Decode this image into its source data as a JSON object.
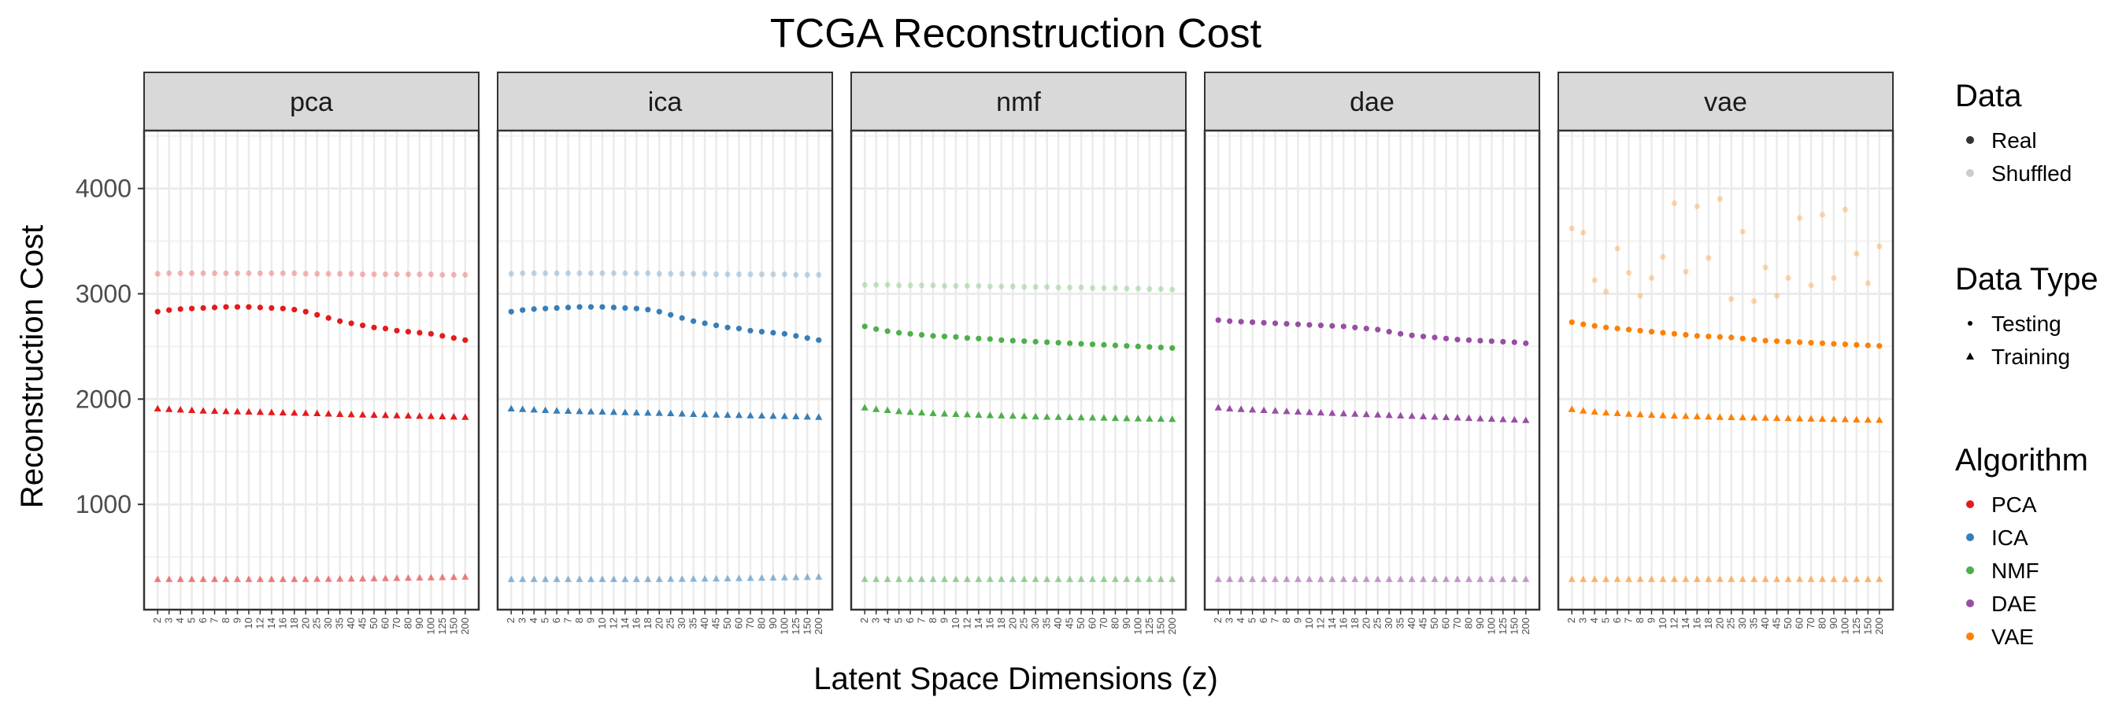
{
  "chart_data": {
    "type": "scatter",
    "title": "TCGA Reconstruction Cost",
    "xlabel": "Latent Space Dimensions (z)",
    "ylabel": "Reconstruction Cost",
    "yticks": [
      1000,
      2000,
      3000,
      4000
    ],
    "ylim": [
      0,
      4550
    ],
    "grid": true,
    "legend_position": "right",
    "x_categories": [
      "2",
      "3",
      "4",
      "5",
      "6",
      "7",
      "8",
      "9",
      "10",
      "12",
      "14",
      "16",
      "18",
      "20",
      "25",
      "30",
      "35",
      "40",
      "45",
      "50",
      "60",
      "70",
      "80",
      "90",
      "100",
      "125",
      "150",
      "200"
    ],
    "panels": [
      {
        "key": "pca",
        "label": "pca",
        "algorithm": "PCA",
        "real_testing": [
          2830,
          2845,
          2855,
          2860,
          2865,
          2870,
          2875,
          2875,
          2875,
          2870,
          2865,
          2860,
          2850,
          2830,
          2800,
          2770,
          2740,
          2720,
          2700,
          2680,
          2670,
          2650,
          2640,
          2630,
          2620,
          2600,
          2580,
          2560
        ],
        "real_training": [
          1910,
          1905,
          1900,
          1895,
          1890,
          1888,
          1885,
          1882,
          1880,
          1878,
          1875,
          1872,
          1870,
          1868,
          1865,
          1862,
          1858,
          1855,
          1852,
          1850,
          1848,
          1845,
          1843,
          1840,
          1838,
          1836,
          1833,
          1830
        ],
        "shuffled_testing": [
          3190,
          3195,
          3195,
          3195,
          3195,
          3195,
          3195,
          3195,
          3195,
          3195,
          3195,
          3195,
          3195,
          3190,
          3190,
          3190,
          3190,
          3190,
          3185,
          3185,
          3185,
          3185,
          3185,
          3185,
          3185,
          3180,
          3180,
          3180
        ],
        "shuffled_training": [
          290,
          290,
          290,
          290,
          290,
          290,
          290,
          290,
          290,
          290,
          290,
          290,
          290,
          290,
          292,
          292,
          293,
          294,
          295,
          296,
          298,
          300,
          302,
          304,
          306,
          308,
          310,
          312
        ]
      },
      {
        "key": "ica",
        "label": "ica",
        "algorithm": "ICA",
        "real_testing": [
          2830,
          2845,
          2855,
          2860,
          2865,
          2870,
          2875,
          2875,
          2875,
          2870,
          2865,
          2860,
          2850,
          2830,
          2800,
          2770,
          2740,
          2720,
          2700,
          2680,
          2670,
          2650,
          2640,
          2630,
          2620,
          2600,
          2580,
          2560
        ],
        "real_training": [
          1910,
          1905,
          1900,
          1895,
          1890,
          1888,
          1885,
          1882,
          1880,
          1878,
          1875,
          1872,
          1870,
          1868,
          1865,
          1862,
          1858,
          1855,
          1852,
          1850,
          1848,
          1845,
          1843,
          1840,
          1838,
          1836,
          1833,
          1830
        ],
        "shuffled_testing": [
          3190,
          3195,
          3195,
          3195,
          3195,
          3195,
          3195,
          3195,
          3195,
          3195,
          3195,
          3195,
          3195,
          3190,
          3190,
          3190,
          3190,
          3190,
          3185,
          3185,
          3185,
          3185,
          3185,
          3185,
          3185,
          3180,
          3180,
          3180
        ],
        "shuffled_training": [
          290,
          290,
          290,
          290,
          290,
          290,
          290,
          290,
          290,
          290,
          290,
          290,
          290,
          290,
          292,
          292,
          293,
          294,
          295,
          296,
          298,
          300,
          302,
          304,
          306,
          308,
          310,
          312
        ]
      },
      {
        "key": "nmf",
        "label": "nmf",
        "algorithm": "NMF",
        "real_testing": [
          2690,
          2665,
          2645,
          2630,
          2620,
          2610,
          2600,
          2595,
          2590,
          2580,
          2575,
          2570,
          2560,
          2555,
          2550,
          2545,
          2540,
          2535,
          2530,
          2525,
          2520,
          2515,
          2510,
          2505,
          2500,
          2495,
          2490,
          2485
        ],
        "real_training": [
          1920,
          1905,
          1895,
          1885,
          1878,
          1872,
          1866,
          1862,
          1858,
          1854,
          1850,
          1847,
          1844,
          1841,
          1838,
          1835,
          1832,
          1830,
          1828,
          1826,
          1824,
          1822,
          1820,
          1818,
          1816,
          1814,
          1812,
          1810
        ],
        "shuffled_testing": [
          3085,
          3085,
          3085,
          3080,
          3080,
          3080,
          3080,
          3075,
          3075,
          3075,
          3075,
          3070,
          3070,
          3070,
          3065,
          3065,
          3065,
          3060,
          3060,
          3060,
          3055,
          3055,
          3055,
          3050,
          3050,
          3045,
          3045,
          3040
        ],
        "shuffled_training": [
          290,
          290,
          290,
          290,
          290,
          290,
          290,
          290,
          290,
          290,
          290,
          290,
          290,
          290,
          290,
          290,
          290,
          290,
          290,
          290,
          290,
          290,
          290,
          290,
          290,
          290,
          290,
          290
        ]
      },
      {
        "key": "dae",
        "label": "dae",
        "algorithm": "DAE",
        "real_testing": [
          2750,
          2740,
          2735,
          2730,
          2725,
          2720,
          2715,
          2710,
          2705,
          2700,
          2695,
          2690,
          2680,
          2670,
          2660,
          2640,
          2620,
          2605,
          2595,
          2585,
          2575,
          2565,
          2560,
          2555,
          2550,
          2545,
          2540,
          2530
        ],
        "real_training": [
          1920,
          1910,
          1905,
          1900,
          1895,
          1890,
          1885,
          1880,
          1876,
          1872,
          1868,
          1864,
          1860,
          1856,
          1852,
          1848,
          1844,
          1840,
          1836,
          1832,
          1828,
          1824,
          1820,
          1816,
          1812,
          1808,
          1805,
          1800
        ],
        "shuffled_testing": [],
        "shuffled_training": [
          290,
          290,
          290,
          290,
          290,
          290,
          290,
          290,
          290,
          290,
          290,
          290,
          290,
          290,
          290,
          290,
          290,
          290,
          290,
          290,
          290,
          290,
          290,
          290,
          290,
          290,
          290,
          290
        ]
      },
      {
        "key": "vae",
        "label": "vae",
        "algorithm": "VAE",
        "real_testing": [
          2730,
          2710,
          2695,
          2680,
          2670,
          2660,
          2650,
          2640,
          2630,
          2620,
          2610,
          2600,
          2595,
          2590,
          2585,
          2575,
          2565,
          2555,
          2550,
          2545,
          2540,
          2535,
          2530,
          2525,
          2520,
          2515,
          2510,
          2505
        ],
        "real_training": [
          1905,
          1890,
          1880,
          1872,
          1866,
          1860,
          1855,
          1850,
          1846,
          1842,
          1839,
          1836,
          1833,
          1830,
          1828,
          1826,
          1824,
          1822,
          1820,
          1818,
          1816,
          1814,
          1812,
          1810,
          1808,
          1806,
          1804,
          1802
        ],
        "shuffled_testing": [
          3620,
          3580,
          3130,
          3020,
          3430,
          3200,
          2980,
          3150,
          3350,
          3860,
          3210,
          3830,
          3340,
          3900,
          2950,
          3590,
          2930,
          3250,
          2980,
          3150,
          3720,
          3080,
          3750,
          3150,
          3800,
          3380,
          3100,
          3450
        ],
        "shuffled_training": [
          290,
          290,
          290,
          290,
          290,
          290,
          290,
          290,
          290,
          290,
          290,
          290,
          290,
          290,
          290,
          290,
          290,
          290,
          290,
          290,
          290,
          290,
          290,
          290,
          290,
          290,
          290,
          290
        ]
      }
    ],
    "legend": {
      "data": {
        "title": "Data",
        "items": [
          {
            "label": "Real",
            "color": "#333333"
          },
          {
            "label": "Shuffled",
            "color": "#cccccc"
          }
        ]
      },
      "data_type": {
        "title": "Data Type",
        "items": [
          {
            "label": "Testing",
            "shape": "circle"
          },
          {
            "label": "Training",
            "shape": "triangle"
          }
        ]
      },
      "algorithm": {
        "title": "Algorithm",
        "items": [
          {
            "label": "PCA",
            "color": "#e41a1c"
          },
          {
            "label": "ICA",
            "color": "#377eb8"
          },
          {
            "label": "NMF",
            "color": "#4daf4a"
          },
          {
            "label": "DAE",
            "color": "#984ea3"
          },
          {
            "label": "VAE",
            "color": "#ff7f00"
          }
        ]
      }
    }
  }
}
